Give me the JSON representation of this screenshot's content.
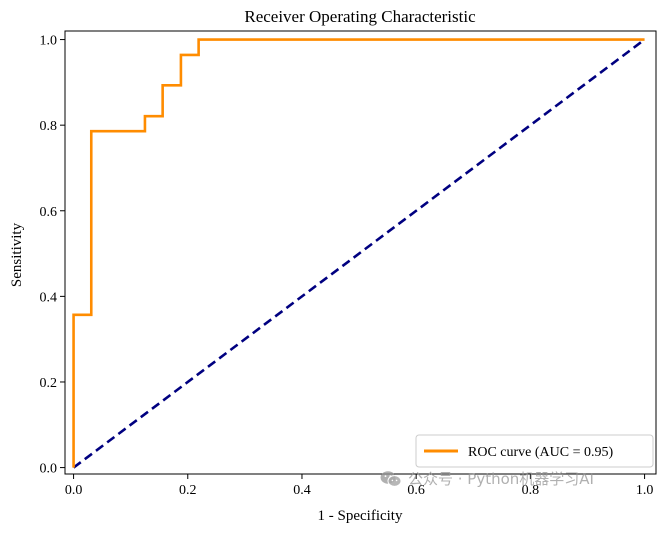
{
  "chart_data": {
    "type": "line",
    "title": "Receiver Operating Characteristic",
    "xlabel": "1 - Specificity",
    "ylabel": "Sensitivity",
    "xlim": [
      -0.015,
      1.02
    ],
    "ylim": [
      -0.015,
      1.02
    ],
    "xticks": [
      "0.0",
      "0.2",
      "0.4",
      "0.6",
      "0.8",
      "1.0"
    ],
    "yticks": [
      "0.0",
      "0.2",
      "0.4",
      "0.6",
      "0.8",
      "1.0"
    ],
    "grid": false,
    "legend_position": "bottom-right",
    "series": [
      {
        "name": "ROC curve (AUC = 0.95)",
        "color": "#ff8c00",
        "style": "solid",
        "x": [
          0.0,
          0.0,
          0.031,
          0.031,
          0.125,
          0.125,
          0.156,
          0.156,
          0.188,
          0.188,
          0.219,
          0.219,
          1.0
        ],
        "y": [
          0.0,
          0.357,
          0.357,
          0.786,
          0.786,
          0.821,
          0.821,
          0.893,
          0.893,
          0.964,
          0.964,
          1.0,
          1.0
        ]
      },
      {
        "name": "",
        "color": "#000080",
        "style": "dashed",
        "x": [
          0.0,
          1.0
        ],
        "y": [
          0.0,
          1.0
        ]
      }
    ]
  },
  "watermark": {
    "icon": "wechat-icon",
    "text": "公众号 · Python机器学习AI"
  }
}
